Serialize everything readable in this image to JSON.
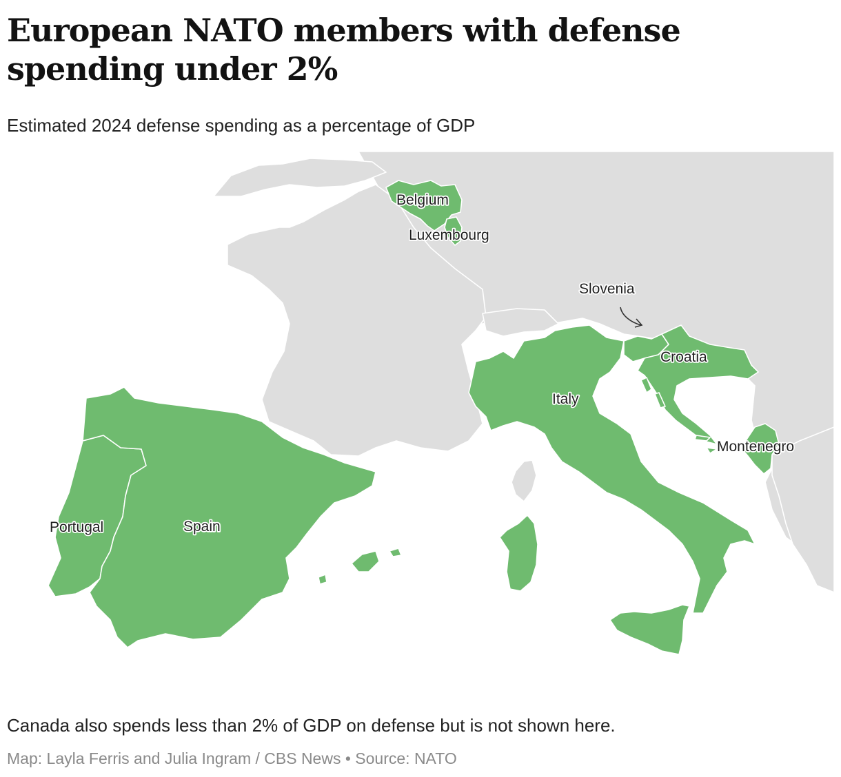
{
  "header": {
    "title": "European NATO members with defense spending under 2%",
    "subtitle": "Estimated 2024 defense spending as a percentage of GDP"
  },
  "map": {
    "highlight_color": "#6fbb6f",
    "base_color": "#dedede",
    "water_color": "#ffffff",
    "labels": {
      "belgium": "Belgium",
      "luxembourg": "Luxembourg",
      "slovenia": "Slovenia",
      "croatia": "Croatia",
      "italy": "Italy",
      "montenegro": "Montenegro",
      "portugal": "Portugal",
      "spain": "Spain"
    },
    "highlighted_countries": [
      "Belgium",
      "Luxembourg",
      "Slovenia",
      "Croatia",
      "Italy",
      "Montenegro",
      "Portugal",
      "Spain"
    ]
  },
  "footer": {
    "note": "Canada also spends less than 2% of GDP on defense but is not shown here.",
    "credit": "Map: Layla Ferris and Julia Ingram / CBS News • Source: NATO"
  }
}
